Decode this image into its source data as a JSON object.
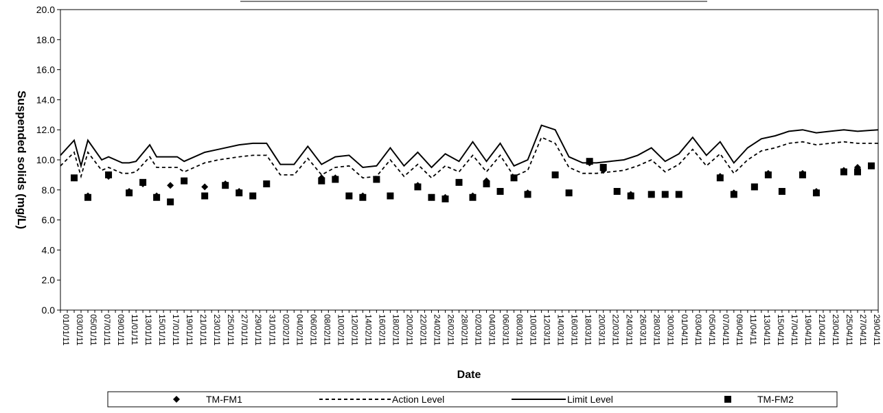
{
  "chart_data": {
    "type": "line",
    "title": "",
    "xlabel": "Date",
    "ylabel": "Suspended solids (mg/L)",
    "ylim": [
      0,
      20
    ],
    "yticks": [
      "0.0",
      "2.0",
      "4.0",
      "6.0",
      "8.0",
      "10.0",
      "12.0",
      "14.0",
      "16.0",
      "18.0",
      "20.0"
    ],
    "x_range": [
      "2011-01-01",
      "2011-04-30"
    ],
    "xtick_labels": [
      "01/01/11",
      "03/01/11",
      "05/01/11",
      "07/01/11",
      "09/01/11",
      "11/01/11",
      "13/01/11",
      "15/01/11",
      "17/01/11",
      "19/01/11",
      "21/01/11",
      "23/01/11",
      "25/01/11",
      "27/01/11",
      "29/01/11",
      "31/01/11",
      "02/02/11",
      "04/02/11",
      "06/02/11",
      "08/02/11",
      "10/02/11",
      "12/02/11",
      "14/02/11",
      "16/02/11",
      "18/02/11",
      "20/02/11",
      "22/02/11",
      "24/02/11",
      "26/02/11",
      "28/02/11",
      "02/03/11",
      "04/03/11",
      "06/03/11",
      "08/03/11",
      "10/03/11",
      "12/03/11",
      "14/03/11",
      "16/03/11",
      "18/03/11",
      "20/03/11",
      "22/03/11",
      "24/03/11",
      "26/03/11",
      "28/03/11",
      "30/03/11",
      "01/04/11",
      "03/04/11",
      "05/04/11",
      "07/04/11",
      "09/04/11",
      "11/04/11",
      "13/04/11",
      "15/04/11",
      "17/04/11",
      "19/04/11",
      "21/04/11",
      "23/04/11",
      "25/04/11",
      "27/04/11",
      "29/04/11"
    ],
    "grid": false,
    "legend_position": "bottom",
    "series": [
      {
        "name": "TM-FM1",
        "style": "marker-diamond",
        "color": "#000000",
        "points": [
          [
            "03/01/11",
            8.8
          ],
          [
            "05/01/11",
            7.6
          ],
          [
            "08/01/11",
            8.9
          ],
          [
            "11/01/11",
            7.9
          ],
          [
            "13/01/11",
            8.4
          ],
          [
            "15/01/11",
            7.6
          ],
          [
            "17/01/11",
            8.3
          ],
          [
            "19/01/11",
            8.6
          ],
          [
            "22/01/11",
            8.2
          ],
          [
            "25/01/11",
            8.4
          ],
          [
            "27/01/11",
            7.9
          ],
          [
            "29/01/11",
            7.6
          ],
          [
            "31/01/11",
            8.4
          ],
          [
            "08/02/11",
            8.8
          ],
          [
            "10/02/11",
            8.8
          ],
          [
            "12/02/11",
            7.6
          ],
          [
            "14/02/11",
            7.6
          ],
          [
            "16/02/11",
            8.7
          ],
          [
            "18/02/11",
            7.6
          ],
          [
            "22/02/11",
            8.3
          ],
          [
            "24/02/11",
            7.5
          ],
          [
            "26/02/11",
            7.5
          ],
          [
            "28/02/11",
            8.5
          ],
          [
            "02/03/11",
            7.6
          ],
          [
            "04/03/11",
            8.6
          ],
          [
            "06/03/11",
            7.9
          ],
          [
            "08/03/11",
            8.8
          ],
          [
            "10/03/11",
            7.8
          ],
          [
            "14/03/11",
            9.0
          ],
          [
            "16/03/11",
            7.8
          ],
          [
            "19/03/11",
            9.8
          ],
          [
            "21/03/11",
            9.3
          ],
          [
            "23/03/11",
            7.9
          ],
          [
            "25/03/11",
            7.7
          ],
          [
            "28/03/11",
            7.7
          ],
          [
            "30/03/11",
            7.7
          ],
          [
            "01/04/11",
            7.7
          ],
          [
            "07/04/11",
            8.9
          ],
          [
            "09/04/11",
            7.8
          ],
          [
            "12/04/11",
            8.2
          ],
          [
            "14/04/11",
            9.1
          ],
          [
            "16/04/11",
            7.9
          ],
          [
            "19/04/11",
            9.1
          ],
          [
            "21/04/11",
            7.9
          ],
          [
            "25/04/11",
            9.3
          ],
          [
            "27/04/11",
            9.5
          ],
          [
            "29/04/11",
            9.6
          ]
        ]
      },
      {
        "name": "Action Level",
        "style": "dashed-line",
        "color": "#000000",
        "points": [
          [
            "01/01/11",
            9.6
          ],
          [
            "03/01/11",
            10.5
          ],
          [
            "04/01/11",
            8.9
          ],
          [
            "05/01/11",
            10.5
          ],
          [
            "07/01/11",
            9.3
          ],
          [
            "08/01/11",
            9.5
          ],
          [
            "10/01/11",
            9.1
          ],
          [
            "11/01/11",
            9.1
          ],
          [
            "12/01/11",
            9.2
          ],
          [
            "14/01/11",
            10.2
          ],
          [
            "15/01/11",
            9.5
          ],
          [
            "17/01/11",
            9.5
          ],
          [
            "18/01/11",
            9.5
          ],
          [
            "19/01/11",
            9.2
          ],
          [
            "22/01/11",
            9.8
          ],
          [
            "24/01/11",
            10.0
          ],
          [
            "27/01/11",
            10.2
          ],
          [
            "29/01/11",
            10.3
          ],
          [
            "31/01/11",
            10.3
          ],
          [
            "02/02/11",
            9.0
          ],
          [
            "04/02/11",
            9.0
          ],
          [
            "06/02/11",
            10.1
          ],
          [
            "08/02/11",
            9.0
          ],
          [
            "10/02/11",
            9.5
          ],
          [
            "12/02/11",
            9.6
          ],
          [
            "14/02/11",
            8.8
          ],
          [
            "16/02/11",
            8.9
          ],
          [
            "18/02/11",
            10.0
          ],
          [
            "20/02/11",
            8.9
          ],
          [
            "22/02/11",
            9.7
          ],
          [
            "24/02/11",
            8.8
          ],
          [
            "26/02/11",
            9.6
          ],
          [
            "28/02/11",
            9.2
          ],
          [
            "02/03/11",
            10.3
          ],
          [
            "04/03/11",
            9.2
          ],
          [
            "06/03/11",
            10.3
          ],
          [
            "08/03/11",
            8.9
          ],
          [
            "10/03/11",
            9.3
          ],
          [
            "12/03/11",
            11.5
          ],
          [
            "14/03/11",
            11.1
          ],
          [
            "16/03/11",
            9.5
          ],
          [
            "18/03/11",
            9.1
          ],
          [
            "20/03/11",
            9.1
          ],
          [
            "22/03/11",
            9.2
          ],
          [
            "24/03/11",
            9.3
          ],
          [
            "26/03/11",
            9.6
          ],
          [
            "28/03/11",
            10.0
          ],
          [
            "30/03/11",
            9.2
          ],
          [
            "01/04/11",
            9.7
          ],
          [
            "03/04/11",
            10.7
          ],
          [
            "05/04/11",
            9.6
          ],
          [
            "07/04/11",
            10.4
          ],
          [
            "09/04/11",
            9.1
          ],
          [
            "11/04/11",
            10.0
          ],
          [
            "13/04/11",
            10.6
          ],
          [
            "15/04/11",
            10.8
          ],
          [
            "17/04/11",
            11.1
          ],
          [
            "19/04/11",
            11.2
          ],
          [
            "21/04/11",
            11.0
          ],
          [
            "23/04/11",
            11.1
          ],
          [
            "25/04/11",
            11.2
          ],
          [
            "27/04/11",
            11.1
          ],
          [
            "30/04/11",
            11.1
          ]
        ]
      },
      {
        "name": "Limit Level",
        "style": "solid-line",
        "color": "#000000",
        "points": [
          [
            "01/01/11",
            10.3
          ],
          [
            "03/01/11",
            11.3
          ],
          [
            "04/01/11",
            9.6
          ],
          [
            "05/01/11",
            11.3
          ],
          [
            "07/01/11",
            10.0
          ],
          [
            "08/01/11",
            10.2
          ],
          [
            "10/01/11",
            9.8
          ],
          [
            "11/01/11",
            9.8
          ],
          [
            "12/01/11",
            9.9
          ],
          [
            "14/01/11",
            11.0
          ],
          [
            "15/01/11",
            10.2
          ],
          [
            "17/01/11",
            10.2
          ],
          [
            "18/01/11",
            10.2
          ],
          [
            "19/01/11",
            9.9
          ],
          [
            "22/01/11",
            10.5
          ],
          [
            "24/01/11",
            10.7
          ],
          [
            "27/01/11",
            11.0
          ],
          [
            "29/01/11",
            11.1
          ],
          [
            "31/01/11",
            11.1
          ],
          [
            "02/02/11",
            9.7
          ],
          [
            "04/02/11",
            9.7
          ],
          [
            "06/02/11",
            10.9
          ],
          [
            "08/02/11",
            9.7
          ],
          [
            "10/02/11",
            10.2
          ],
          [
            "12/02/11",
            10.3
          ],
          [
            "14/02/11",
            9.5
          ],
          [
            "16/02/11",
            9.6
          ],
          [
            "18/02/11",
            10.8
          ],
          [
            "20/02/11",
            9.6
          ],
          [
            "22/02/11",
            10.5
          ],
          [
            "24/02/11",
            9.5
          ],
          [
            "26/02/11",
            10.4
          ],
          [
            "28/02/11",
            9.9
          ],
          [
            "02/03/11",
            11.2
          ],
          [
            "04/03/11",
            9.9
          ],
          [
            "06/03/11",
            11.1
          ],
          [
            "08/03/11",
            9.6
          ],
          [
            "10/03/11",
            10.0
          ],
          [
            "12/03/11",
            12.3
          ],
          [
            "14/03/11",
            12.0
          ],
          [
            "16/03/11",
            10.2
          ],
          [
            "18/03/11",
            9.8
          ],
          [
            "20/03/11",
            9.8
          ],
          [
            "22/03/11",
            9.9
          ],
          [
            "24/03/11",
            10.0
          ],
          [
            "26/03/11",
            10.3
          ],
          [
            "28/03/11",
            10.8
          ],
          [
            "30/03/11",
            9.9
          ],
          [
            "01/04/11",
            10.4
          ],
          [
            "03/04/11",
            11.5
          ],
          [
            "05/04/11",
            10.3
          ],
          [
            "07/04/11",
            11.2
          ],
          [
            "09/04/11",
            9.8
          ],
          [
            "11/04/11",
            10.8
          ],
          [
            "13/04/11",
            11.4
          ],
          [
            "15/04/11",
            11.6
          ],
          [
            "17/04/11",
            11.9
          ],
          [
            "19/04/11",
            12.0
          ],
          [
            "21/04/11",
            11.8
          ],
          [
            "23/04/11",
            11.9
          ],
          [
            "25/04/11",
            12.0
          ],
          [
            "27/04/11",
            11.9
          ],
          [
            "30/04/11",
            12.0
          ]
        ]
      },
      {
        "name": "TM-FM2",
        "style": "marker-square",
        "color": "#000000",
        "points": [
          [
            "03/01/11",
            8.8
          ],
          [
            "05/01/11",
            7.5
          ],
          [
            "08/01/11",
            9.0
          ],
          [
            "11/01/11",
            7.8
          ],
          [
            "13/01/11",
            8.5
          ],
          [
            "15/01/11",
            7.5
          ],
          [
            "17/01/11",
            7.2
          ],
          [
            "19/01/11",
            8.6
          ],
          [
            "22/01/11",
            7.6
          ],
          [
            "25/01/11",
            8.3
          ],
          [
            "27/01/11",
            7.8
          ],
          [
            "29/01/11",
            7.6
          ],
          [
            "31/01/11",
            8.4
          ],
          [
            "08/02/11",
            8.6
          ],
          [
            "10/02/11",
            8.7
          ],
          [
            "12/02/11",
            7.6
          ],
          [
            "14/02/11",
            7.5
          ],
          [
            "16/02/11",
            8.7
          ],
          [
            "18/02/11",
            7.6
          ],
          [
            "22/02/11",
            8.2
          ],
          [
            "24/02/11",
            7.5
          ],
          [
            "26/02/11",
            7.4
          ],
          [
            "28/02/11",
            8.5
          ],
          [
            "02/03/11",
            7.5
          ],
          [
            "04/03/11",
            8.4
          ],
          [
            "06/03/11",
            7.9
          ],
          [
            "08/03/11",
            8.8
          ],
          [
            "10/03/11",
            7.7
          ],
          [
            "14/03/11",
            9.0
          ],
          [
            "16/03/11",
            7.8
          ],
          [
            "19/03/11",
            9.9
          ],
          [
            "21/03/11",
            9.5
          ],
          [
            "23/03/11",
            7.9
          ],
          [
            "25/03/11",
            7.6
          ],
          [
            "28/03/11",
            7.7
          ],
          [
            "30/03/11",
            7.7
          ],
          [
            "01/04/11",
            7.7
          ],
          [
            "07/04/11",
            8.8
          ],
          [
            "09/04/11",
            7.7
          ],
          [
            "12/04/11",
            8.2
          ],
          [
            "14/04/11",
            9.0
          ],
          [
            "16/04/11",
            7.9
          ],
          [
            "19/04/11",
            9.0
          ],
          [
            "21/04/11",
            7.8
          ],
          [
            "25/04/11",
            9.2
          ],
          [
            "27/04/11",
            9.2
          ],
          [
            "29/04/11",
            9.6
          ]
        ]
      }
    ]
  }
}
